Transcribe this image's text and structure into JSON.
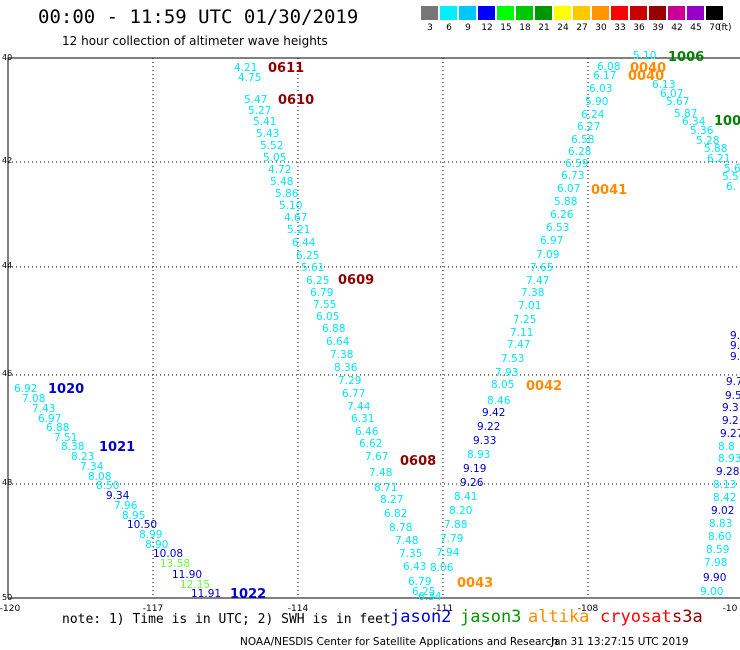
{
  "header": {
    "title": "00:00 - 11:59 UTC 01/30/2019",
    "subtitle": "12 hour collection of altimeter wave heights"
  },
  "legend": {
    "unit": "(ft)",
    "items": [
      {
        "label": "3",
        "color": "#777777"
      },
      {
        "label": "6",
        "color": "#00f0ff"
      },
      {
        "label": "9",
        "color": "#00c8ff"
      },
      {
        "label": "12",
        "color": "#0000ff"
      },
      {
        "label": "15",
        "color": "#00ff00"
      },
      {
        "label": "18",
        "color": "#00c800"
      },
      {
        "label": "21",
        "color": "#009600"
      },
      {
        "label": "24",
        "color": "#ffff00"
      },
      {
        "label": "27",
        "color": "#ffc800"
      },
      {
        "label": "30",
        "color": "#ff9600"
      },
      {
        "label": "33",
        "color": "#ff0000"
      },
      {
        "label": "36",
        "color": "#c80000"
      },
      {
        "label": "39",
        "color": "#960000"
      },
      {
        "label": "42",
        "color": "#c80096"
      },
      {
        "label": "45",
        "color": "#9600c8"
      },
      {
        "label": "70",
        "color": "#000000"
      }
    ]
  },
  "map": {
    "lon_ticks": [
      "-120",
      "-117",
      "-114",
      "-111",
      "-108",
      "-10"
    ],
    "lat_ticks": [
      "40",
      "42",
      "44",
      "46",
      "48",
      "50"
    ],
    "colors": {
      "cyan": "#00e8f8",
      "blue": "#0000cc",
      "green": "#66ff33",
      "orange": "#ff8c00",
      "darkred": "#8b0000",
      "darkgreen": "#008000"
    },
    "markers": [
      {
        "text": "0611",
        "color": "darkred"
      },
      {
        "text": "0610",
        "color": "darkred"
      },
      {
        "text": "0609",
        "color": "darkred"
      },
      {
        "text": "0608",
        "color": "darkred"
      },
      {
        "text": "0043",
        "color": "orange"
      },
      {
        "text": "0042",
        "color": "orange"
      },
      {
        "text": "0041",
        "color": "orange"
      },
      {
        "text": "0040",
        "color": "orange"
      },
      {
        "text": "0040",
        "color": "orange"
      },
      {
        "text": "1006",
        "color": "darkgreen"
      },
      {
        "text": "100",
        "color": "darkgreen"
      },
      {
        "text": "1020",
        "color": "blue"
      },
      {
        "text": "1021",
        "color": "blue"
      },
      {
        "text": "1022",
        "color": "blue"
      }
    ],
    "track_jason2_left": [
      {
        "v": "6.92",
        "c": "cyan"
      },
      {
        "v": "7.08",
        "c": "cyan"
      },
      {
        "v": "7.43",
        "c": "cyan"
      },
      {
        "v": "6.97",
        "c": "cyan"
      },
      {
        "v": "6.88",
        "c": "cyan"
      },
      {
        "v": "7.51",
        "c": "cyan"
      },
      {
        "v": "8.38",
        "c": "cyan"
      },
      {
        "v": "8.23",
        "c": "cyan"
      },
      {
        "v": "7.34",
        "c": "cyan"
      },
      {
        "v": "8.08",
        "c": "cyan"
      },
      {
        "v": "8.50",
        "c": "cyan"
      },
      {
        "v": "9.34",
        "c": "blue"
      },
      {
        "v": "7.96",
        "c": "cyan"
      },
      {
        "v": "8.95",
        "c": "cyan"
      },
      {
        "v": "10.50",
        "c": "blue"
      },
      {
        "v": "8.99",
        "c": "cyan"
      },
      {
        "v": "8.90",
        "c": "cyan"
      },
      {
        "v": "10.08",
        "c": "blue"
      },
      {
        "v": "13.58",
        "c": "green"
      },
      {
        "v": "11.90",
        "c": "blue"
      },
      {
        "v": "12.15",
        "c": "green"
      },
      {
        "v": "11.91",
        "c": "blue"
      }
    ],
    "track_cryosat_desc": [
      {
        "v": "4.21",
        "c": "cyan"
      },
      {
        "v": "4.75",
        "c": "cyan"
      },
      {
        "v": "5.47",
        "c": "cyan"
      },
      {
        "v": "5.27",
        "c": "cyan"
      },
      {
        "v": "5.41",
        "c": "cyan"
      },
      {
        "v": "5.43",
        "c": "cyan"
      },
      {
        "v": "5.52",
        "c": "cyan"
      },
      {
        "v": "5.05",
        "c": "cyan"
      },
      {
        "v": "4.72",
        "c": "cyan"
      },
      {
        "v": "5.48",
        "c": "cyan"
      },
      {
        "v": "5.86",
        "c": "cyan"
      },
      {
        "v": "5.10",
        "c": "cyan"
      },
      {
        "v": "4.67",
        "c": "cyan"
      },
      {
        "v": "5.21",
        "c": "cyan"
      },
      {
        "v": "6.44",
        "c": "cyan"
      },
      {
        "v": "6.25",
        "c": "cyan"
      },
      {
        "v": "5.61",
        "c": "cyan"
      },
      {
        "v": "6.25",
        "c": "cyan"
      },
      {
        "v": "6.79",
        "c": "cyan"
      },
      {
        "v": "7.55",
        "c": "cyan"
      },
      {
        "v": "6.05",
        "c": "cyan"
      },
      {
        "v": "6.88",
        "c": "cyan"
      },
      {
        "v": "6.64",
        "c": "cyan"
      },
      {
        "v": "7.38",
        "c": "cyan"
      },
      {
        "v": "8.36",
        "c": "cyan"
      },
      {
        "v": "7.29",
        "c": "cyan"
      },
      {
        "v": "6.77",
        "c": "cyan"
      },
      {
        "v": "7.44",
        "c": "cyan"
      },
      {
        "v": "6.31",
        "c": "cyan"
      },
      {
        "v": "6.46",
        "c": "cyan"
      },
      {
        "v": "6.62",
        "c": "cyan"
      },
      {
        "v": "7.67",
        "c": "cyan"
      },
      {
        "v": "7.48",
        "c": "cyan"
      },
      {
        "v": "8.71",
        "c": "cyan"
      },
      {
        "v": "8.27",
        "c": "cyan"
      },
      {
        "v": "6.82",
        "c": "cyan"
      },
      {
        "v": "8.78",
        "c": "cyan"
      },
      {
        "v": "7.48",
        "c": "cyan"
      },
      {
        "v": "7.35",
        "c": "cyan"
      },
      {
        "v": "6.43",
        "c": "cyan"
      },
      {
        "v": "6.79",
        "c": "cyan"
      },
      {
        "v": "6.25",
        "c": "cyan"
      },
      {
        "v": "6.34",
        "c": "cyan"
      }
    ],
    "track_altika_asc": [
      {
        "v": "8.06",
        "c": "cyan"
      },
      {
        "v": "7.94",
        "c": "cyan"
      },
      {
        "v": "7.79",
        "c": "cyan"
      },
      {
        "v": "7.88",
        "c": "cyan"
      },
      {
        "v": "8.20",
        "c": "cyan"
      },
      {
        "v": "8.41",
        "c": "cyan"
      },
      {
        "v": "9.26",
        "c": "blue"
      },
      {
        "v": "9.19",
        "c": "blue"
      },
      {
        "v": "8.93",
        "c": "cyan"
      },
      {
        "v": "9.33",
        "c": "blue"
      },
      {
        "v": "9.22",
        "c": "blue"
      },
      {
        "v": "9.42",
        "c": "blue"
      },
      {
        "v": "8.46",
        "c": "cyan"
      },
      {
        "v": "8.05",
        "c": "cyan"
      },
      {
        "v": "7.93",
        "c": "cyan"
      },
      {
        "v": "7.53",
        "c": "cyan"
      },
      {
        "v": "7.47",
        "c": "cyan"
      },
      {
        "v": "7.11",
        "c": "cyan"
      },
      {
        "v": "7.25",
        "c": "cyan"
      },
      {
        "v": "7.01",
        "c": "cyan"
      },
      {
        "v": "7.38",
        "c": "cyan"
      },
      {
        "v": "7.47",
        "c": "cyan"
      },
      {
        "v": "7.65",
        "c": "cyan"
      },
      {
        "v": "7.09",
        "c": "cyan"
      },
      {
        "v": "6.97",
        "c": "cyan"
      },
      {
        "v": "6.53",
        "c": "cyan"
      },
      {
        "v": "6.26",
        "c": "cyan"
      },
      {
        "v": "5.88",
        "c": "cyan"
      },
      {
        "v": "6.07",
        "c": "cyan"
      },
      {
        "v": "6.73",
        "c": "cyan"
      },
      {
        "v": "6.59",
        "c": "cyan"
      },
      {
        "v": "6.28",
        "c": "cyan"
      },
      {
        "v": "6.58",
        "c": "cyan"
      },
      {
        "v": "6.27",
        "c": "cyan"
      },
      {
        "v": "6.24",
        "c": "cyan"
      },
      {
        "v": "5.90",
        "c": "cyan"
      },
      {
        "v": "6.03",
        "c": "cyan"
      },
      {
        "v": "6.17",
        "c": "cyan"
      },
      {
        "v": "6.08",
        "c": "cyan"
      }
    ],
    "track_jason3_desc": [
      {
        "v": "5.10",
        "c": "cyan"
      },
      {
        "v": "6.13",
        "c": "cyan"
      },
      {
        "v": "6.07",
        "c": "cyan"
      },
      {
        "v": "5.67",
        "c": "cyan"
      },
      {
        "v": "5.87",
        "c": "cyan"
      },
      {
        "v": "6.34",
        "c": "cyan"
      },
      {
        "v": "5.36",
        "c": "cyan"
      },
      {
        "v": "5.28",
        "c": "cyan"
      },
      {
        "v": "5.88",
        "c": "cyan"
      },
      {
        "v": "6.21",
        "c": "cyan"
      },
      {
        "v": "5.6",
        "c": "cyan"
      },
      {
        "v": "5.5",
        "c": "cyan"
      },
      {
        "v": "6.",
        "c": "cyan"
      }
    ],
    "track_right_edge": [
      {
        "v": "9.",
        "c": "blue"
      },
      {
        "v": "9.",
        "c": "blue"
      },
      {
        "v": "9.",
        "c": "blue"
      },
      {
        "v": "9.7",
        "c": "blue"
      },
      {
        "v": "9.5",
        "c": "blue"
      },
      {
        "v": "9.3",
        "c": "blue"
      },
      {
        "v": "9.2",
        "c": "blue"
      },
      {
        "v": "9.27",
        "c": "blue"
      },
      {
        "v": "8.8",
        "c": "cyan"
      },
      {
        "v": "8.93",
        "c": "cyan"
      },
      {
        "v": "9.28",
        "c": "blue"
      },
      {
        "v": "8.13",
        "c": "cyan"
      },
      {
        "v": "8.42",
        "c": "cyan"
      },
      {
        "v": "9.02",
        "c": "blue"
      },
      {
        "v": "8.83",
        "c": "cyan"
      },
      {
        "v": "8.60",
        "c": "cyan"
      },
      {
        "v": "8.59",
        "c": "cyan"
      },
      {
        "v": "7.98",
        "c": "cyan"
      },
      {
        "v": "9.90",
        "c": "blue"
      },
      {
        "v": "9.00",
        "c": "cyan"
      }
    ]
  },
  "footer": {
    "note": "note: 1) Time is in UTC; 2) SWH is in feet",
    "satellites": [
      {
        "name": "jason2",
        "color": "#0000cc"
      },
      {
        "name": "jason3",
        "color": "#009600"
      },
      {
        "name": "altika",
        "color": "#ff8c00"
      },
      {
        "name": "cryosat",
        "color": "#ff0000"
      },
      {
        "name": "s3a",
        "color": "#8b0000"
      }
    ],
    "credit": "NOAA/NESDIS Center for Satellite Applications and Research",
    "timestamp": "Jan 31 13:27:15 UTC 2019"
  }
}
